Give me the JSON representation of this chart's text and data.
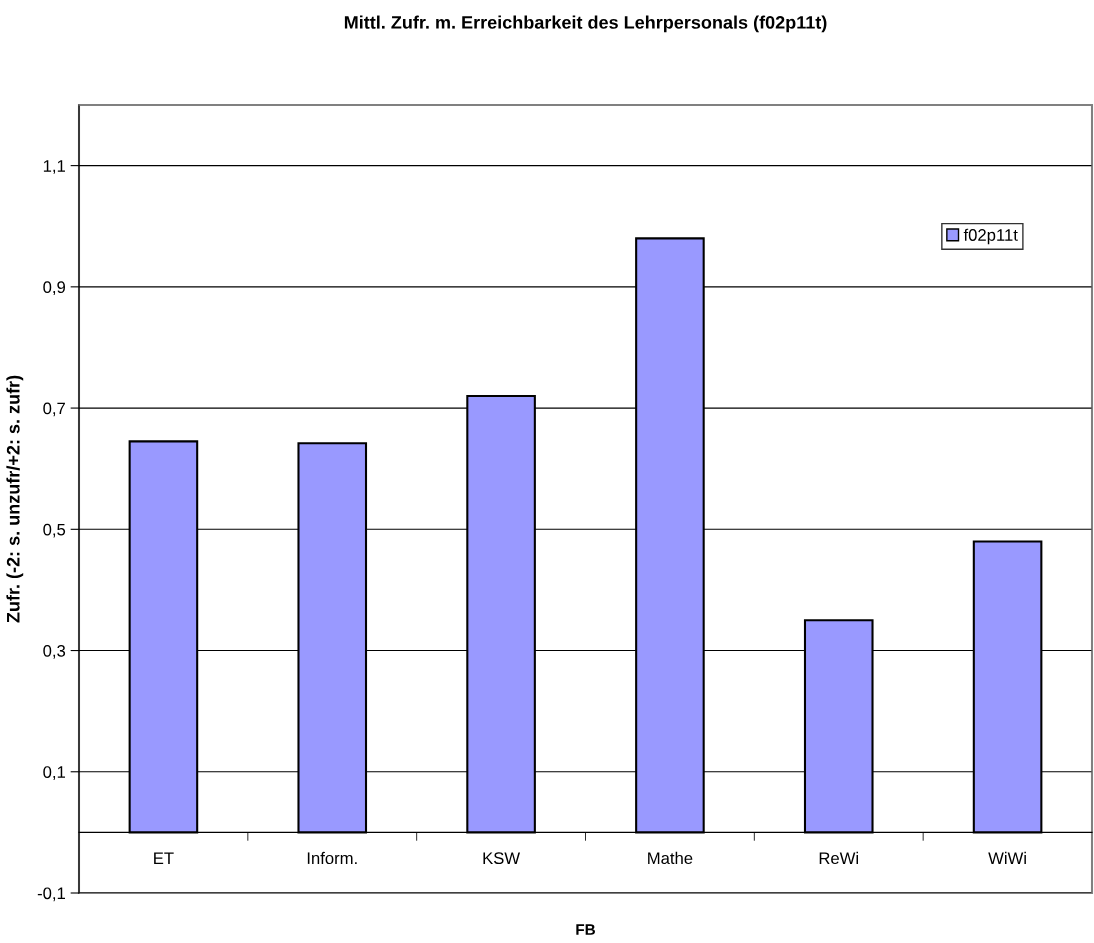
{
  "chart_data": {
    "type": "bar",
    "title": "Mittl. Zufr. m. Erreichbarkeit des Lehrpersonals (f02p11t)",
    "xlabel": "FB",
    "ylabel": "Zufr. (-2: s. unzufr/+2: s. zufr)",
    "categories": [
      "ET",
      "Inform.",
      "KSW",
      "Mathe",
      "ReWi",
      "WiWi"
    ],
    "series": [
      {
        "name": "f02p11t",
        "color": "#9999ff",
        "values": [
          0.645,
          0.642,
          0.72,
          0.98,
          0.35,
          0.48
        ]
      }
    ],
    "ylim": [
      -0.1,
      1.2
    ],
    "yticks": [
      {
        "value": -0.1,
        "label": "-0,1"
      },
      {
        "value": 0.1,
        "label": "0,1"
      },
      {
        "value": 0.3,
        "label": "0,3"
      },
      {
        "value": 0.5,
        "label": "0,5"
      },
      {
        "value": 0.7,
        "label": "0,7"
      },
      {
        "value": 0.9,
        "label": "0,9"
      },
      {
        "value": 1.1,
        "label": "1,1"
      }
    ],
    "grid": "y",
    "legend": "top right"
  }
}
